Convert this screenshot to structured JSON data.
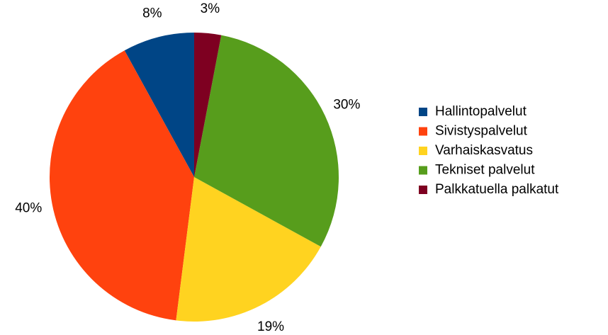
{
  "chart_data": {
    "type": "pie",
    "categories": [
      "Hallintopalvelut",
      "Sivistyspalvelut",
      "Varhaiskasvatus",
      "Tekniset palvelut",
      "Palkkatuella palkatut"
    ],
    "values": [
      8,
      40,
      19,
      30,
      3
    ],
    "value_labels": [
      "8%",
      "40%",
      "19%",
      "30%",
      "3%"
    ],
    "colors": [
      "#004586",
      "#ff420e",
      "#ffd320",
      "#579d1c",
      "#7e0021"
    ],
    "legend": "right"
  }
}
